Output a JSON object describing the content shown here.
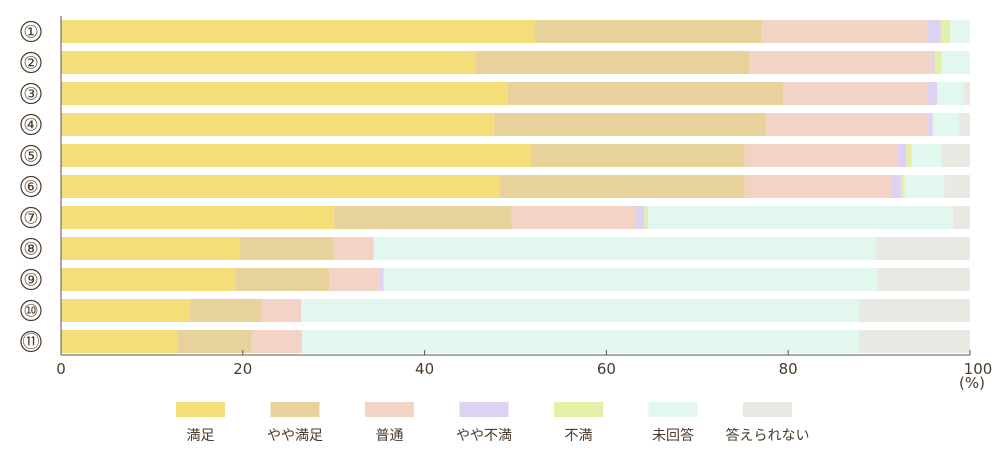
{
  "chart_data": {
    "type": "bar",
    "orientation": "horizontal",
    "stacked": true,
    "categories": [
      "①",
      "②",
      "③",
      "④",
      "⑤",
      "⑥",
      "⑦",
      "⑧",
      "⑨",
      "⑩",
      "⑪"
    ],
    "series": [
      {
        "name": "満足",
        "color": "#f5dd7a",
        "values": [
          52.1,
          45.6,
          49.1,
          47.6,
          51.7,
          48.2,
          30.0,
          19.7,
          19.2,
          14.2,
          12.8
        ]
      },
      {
        "name": "やや満足",
        "color": "#e8d29b",
        "values": [
          25.0,
          30.1,
          30.4,
          30.0,
          23.5,
          27.0,
          19.6,
          10.3,
          10.3,
          7.9,
          8.2
        ]
      },
      {
        "name": "普通",
        "color": "#f3d3c5",
        "values": [
          18.2,
          20.1,
          15.8,
          17.8,
          16.8,
          16.2,
          13.7,
          4.4,
          5.6,
          4.3,
          5.5
        ]
      },
      {
        "name": "やや不満",
        "color": "#ddd3f0",
        "values": [
          1.5,
          0.3,
          1.1,
          0.5,
          1.0,
          1.0,
          0.9,
          0.0,
          0.4,
          0.0,
          0.0
        ]
      },
      {
        "name": "不満",
        "color": "#e4f0a7",
        "values": [
          1.0,
          0.8,
          0.0,
          0.0,
          0.6,
          0.4,
          0.4,
          0.0,
          0.0,
          0.0,
          0.0
        ]
      },
      {
        "name": "未回答",
        "color": "#e2f7ee",
        "values": [
          2.2,
          3.1,
          2.9,
          2.9,
          3.3,
          4.4,
          33.5,
          55.3,
          54.3,
          61.4,
          61.3
        ]
      },
      {
        "name": "答えられない",
        "color": "#e9e8e3",
        "values": [
          0.0,
          0.0,
          0.7,
          1.2,
          3.1,
          2.8,
          1.9,
          10.3,
          10.2,
          12.2,
          12.2
        ]
      }
    ],
    "xlim": [
      0,
      100
    ],
    "xticks": [
      0,
      20,
      40,
      60,
      80,
      100
    ],
    "xunit": "(%)",
    "grid": false,
    "legend_position": "bottom"
  }
}
